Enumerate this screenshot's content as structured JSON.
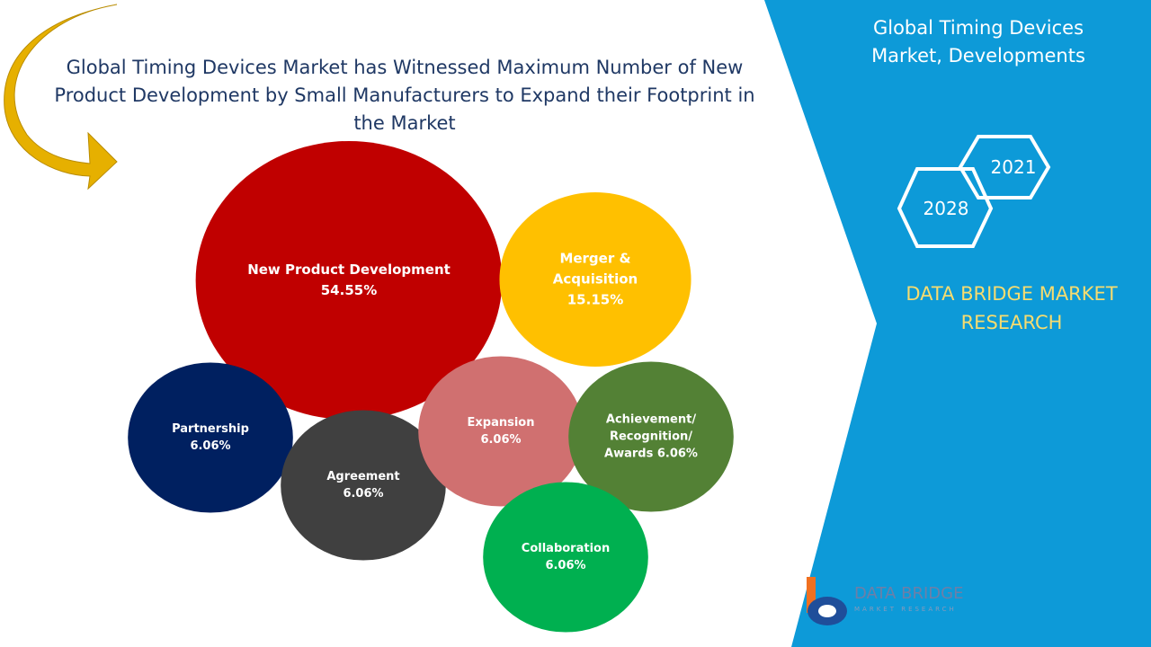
{
  "chart_data": {
    "type": "bubble",
    "title": "Global Timing Devices Market has Witnessed Maximum Number of New Product Development by Small Manufacturers to Expand their Footprint in the Market",
    "annotations": [
      "Global Timing Devices Market, Developments",
      "2021",
      "2028",
      "DATA BRIDGE MARKET RESEARCH",
      "DATA BRIDGE",
      "MARKET RESEARCH"
    ],
    "categories": [
      "New Product Development",
      "Merger & Acquisition",
      "Partnership",
      "Agreement",
      "Expansion",
      "Achievement/ Recognition/ Awards",
      "Collaboration"
    ],
    "values": [
      54.55,
      15.15,
      6.06,
      6.06,
      6.06,
      6.06,
      6.06
    ],
    "value_labels": [
      "54.55%",
      "15.15%",
      "6.06%",
      "6.06%",
      "6.06%",
      "6.06%",
      "6.06%"
    ],
    "colors": [
      "#c00000",
      "#ffc000",
      "#002060",
      "#404040",
      "#d07070",
      "#538135",
      "#00b050"
    ]
  }
}
